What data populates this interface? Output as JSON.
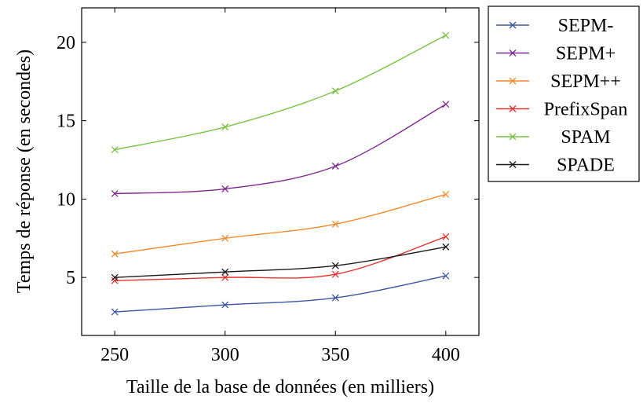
{
  "chart_data": {
    "type": "line",
    "xlabel": "Taille de la base de données (en milliers)",
    "ylabel": "Temps de réponse (en secondes)",
    "x": [
      250,
      300,
      350,
      400
    ],
    "xticks": [
      "250",
      "300",
      "350",
      "400"
    ],
    "yticks": [
      "5",
      "10",
      "15",
      "20"
    ],
    "xlim": [
      235,
      415
    ],
    "ylim": [
      1.3,
      22.2
    ],
    "grid": false,
    "legend_position": "outside-right",
    "series": [
      {
        "name": "SEPM-",
        "color": "#3b55a3",
        "values": [
          2.8,
          3.25,
          3.7,
          5.1
        ]
      },
      {
        "name": "SEPM+",
        "color": "#7b2a8e",
        "values": [
          10.35,
          10.65,
          12.1,
          16.05
        ]
      },
      {
        "name": "SEPM++",
        "color": "#f28a2e",
        "values": [
          6.5,
          7.5,
          8.4,
          10.3
        ]
      },
      {
        "name": "PrefixSpan",
        "color": "#e8302c",
        "values": [
          4.8,
          5.0,
          5.2,
          7.6
        ]
      },
      {
        "name": "SPAM",
        "color": "#7ac143",
        "values": [
          13.15,
          14.6,
          16.9,
          20.45
        ]
      },
      {
        "name": "SPADE",
        "color": "#1a1a1a",
        "values": [
          5.0,
          5.35,
          5.75,
          6.95
        ]
      }
    ]
  }
}
